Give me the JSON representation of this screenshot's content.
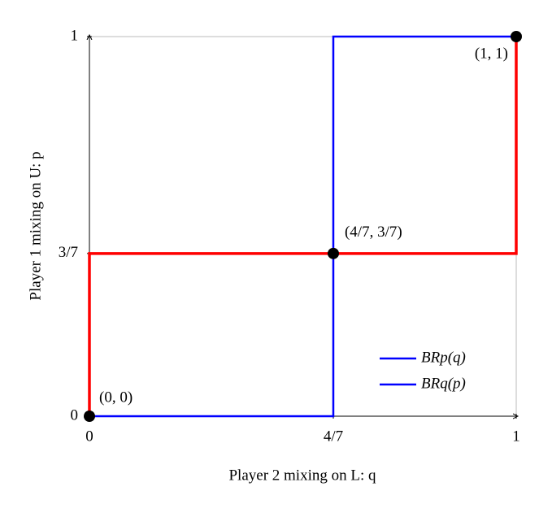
{
  "chart_data": {
    "type": "line",
    "xlabel": "Player 2 mixing on L: q",
    "ylabel": "Player 1 mixing on U: p",
    "xlim": [
      0,
      1
    ],
    "ylim": [
      0,
      1
    ],
    "xticks": [
      0,
      {
        "value": 0.5714,
        "label": "4/7"
      },
      1
    ],
    "yticks": [
      0,
      {
        "value": 0.4286,
        "label": "3/7"
      },
      1
    ],
    "series": [
      {
        "name": "BRp(q)",
        "color": "#0000ff",
        "legend_color": "#0000ff",
        "x": [
          0,
          0.5714,
          0.5714,
          1
        ],
        "values": [
          0,
          0,
          1,
          1
        ]
      },
      {
        "name": "BRq(p)",
        "color": "#ff0000",
        "legend_color": "#0000ff",
        "x": [
          0,
          0,
          1,
          1
        ],
        "values": [
          0,
          0.4286,
          0.4286,
          1
        ]
      }
    ],
    "points": {
      "color": "#000000",
      "x": [
        0,
        0.5714,
        1
      ],
      "values": [
        0,
        0.4286,
        1
      ],
      "labels": [
        "(0, 0)",
        "(4/7, 3/7)",
        "(1, 1)"
      ]
    }
  }
}
